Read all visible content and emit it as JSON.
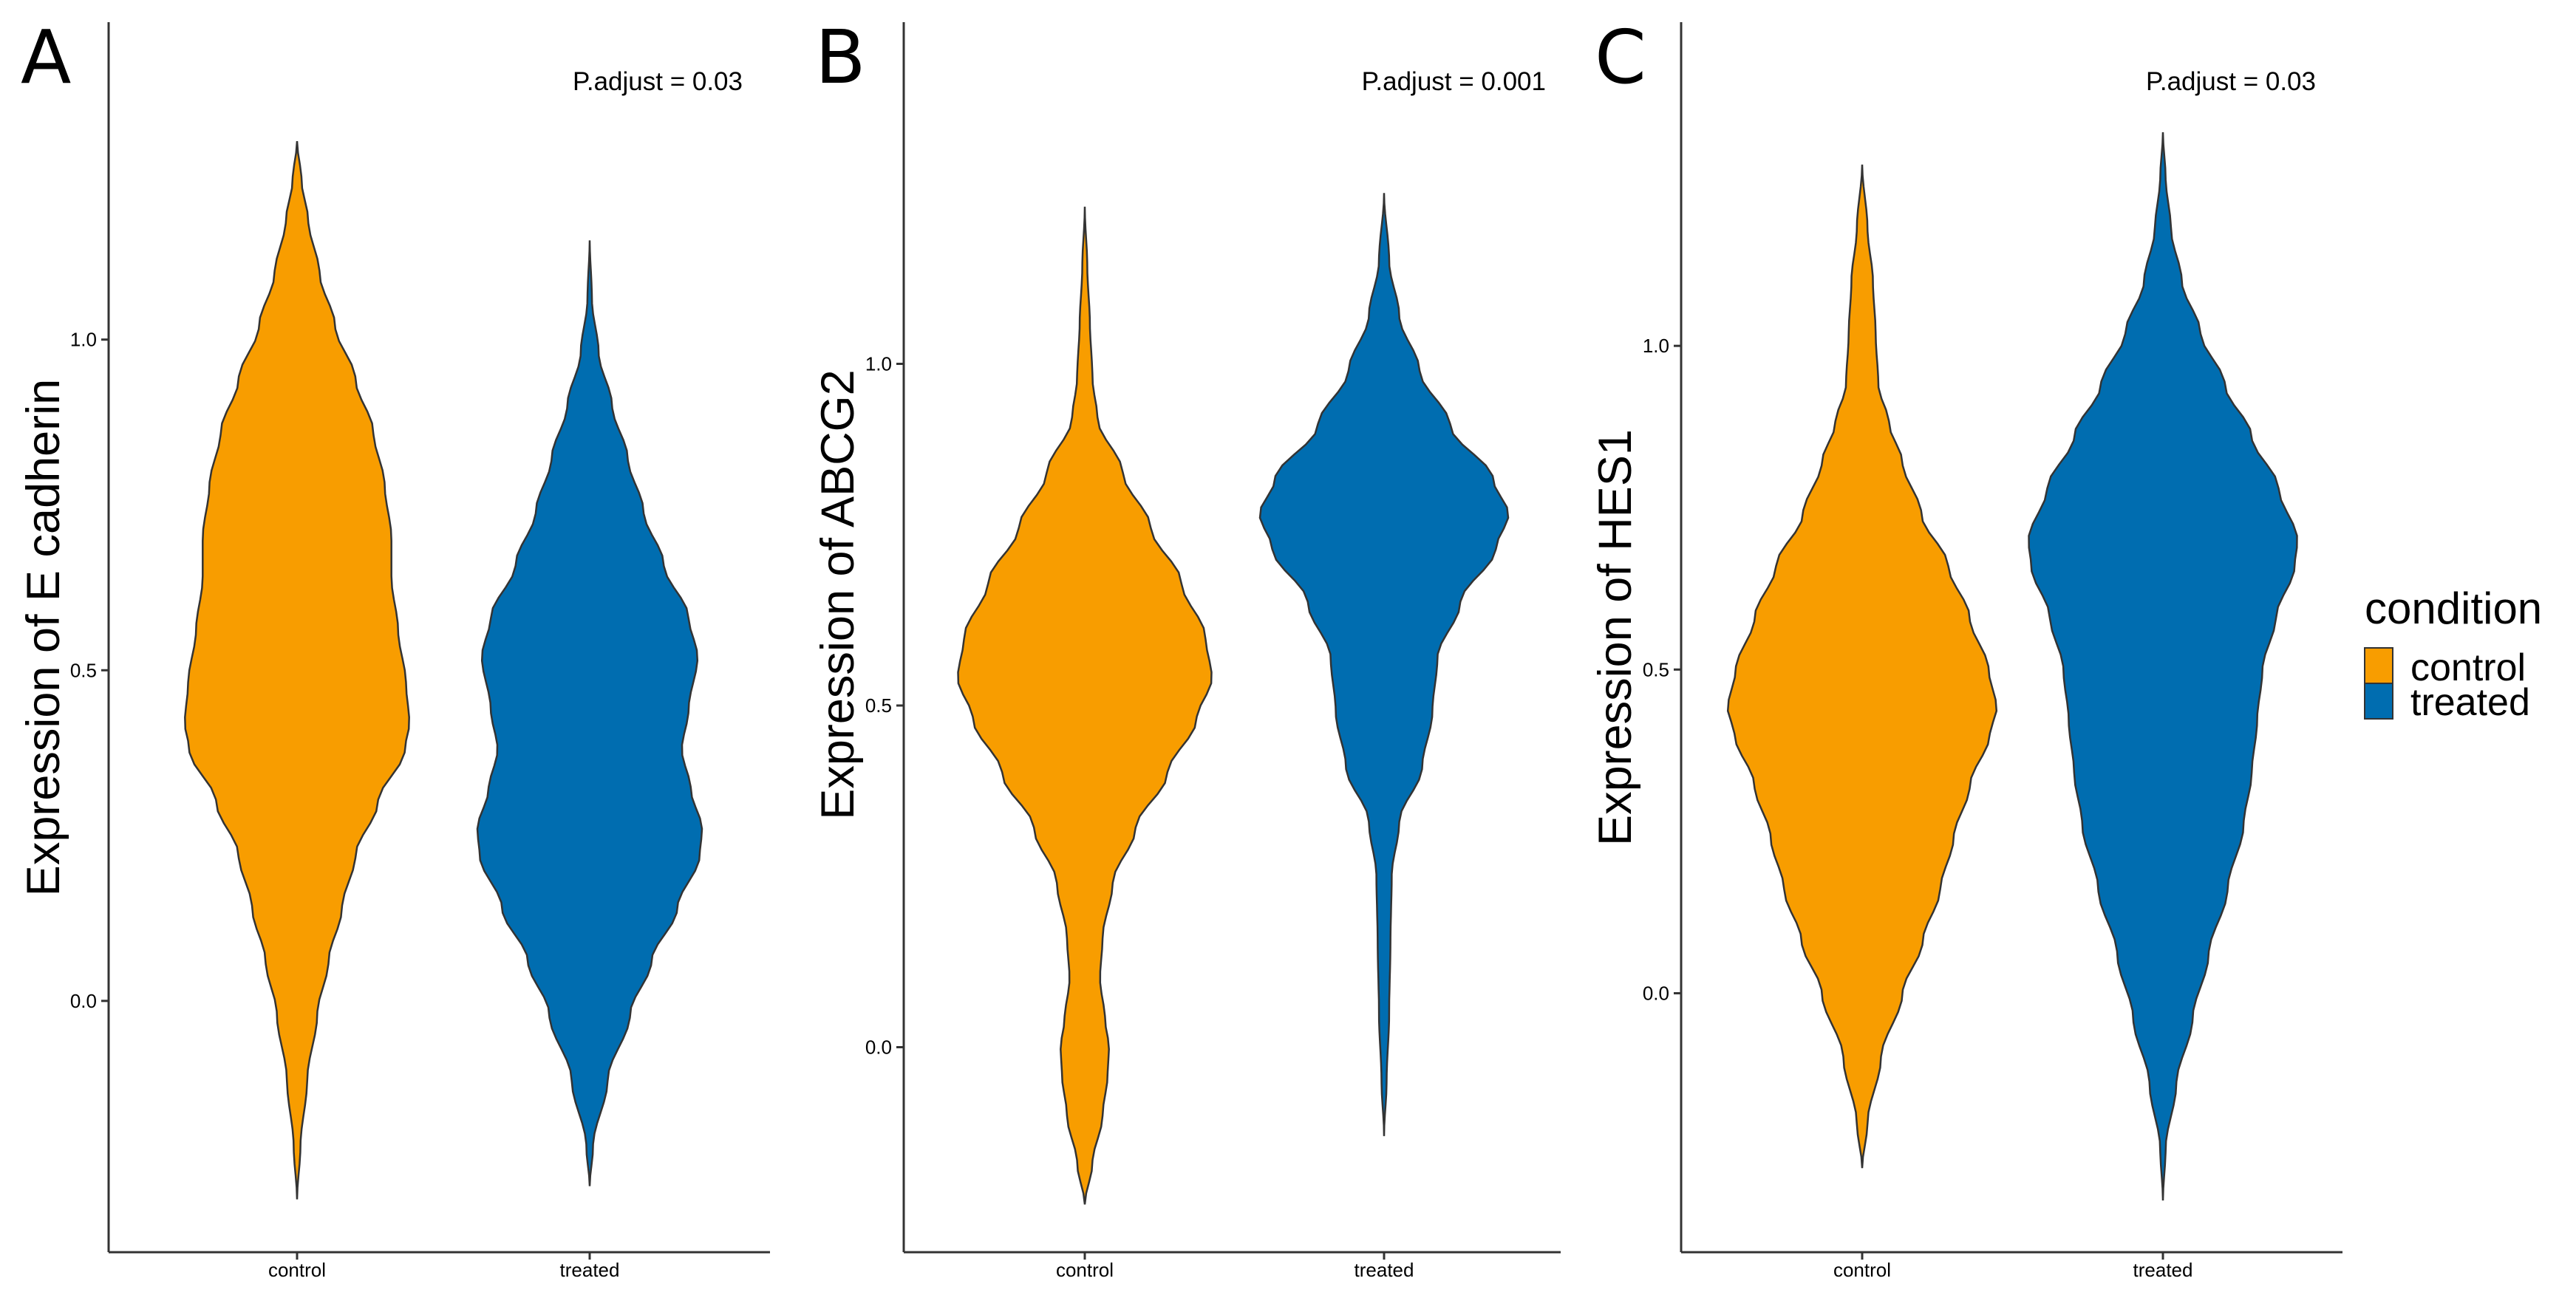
{
  "legend": {
    "title": "condition",
    "entries": [
      {
        "label": "control",
        "color": "#F89D00"
      },
      {
        "label": "treated",
        "color": "#006DB0"
      }
    ]
  },
  "chart_data": [
    {
      "type": "violin",
      "panel_label": "A",
      "title": "",
      "xlabel": "",
      "ylabel": "Expression of E cadherin",
      "annotation": "P.adjust = 0.03",
      "categories": [
        "control",
        "treated"
      ],
      "ylim": [
        -0.38,
        1.48
      ],
      "y_ticks": [
        0.0,
        0.5,
        1.0
      ],
      "y_tick_labels": [
        "0.0",
        "0.5",
        "1.0"
      ],
      "series": [
        {
          "name": "control",
          "color": "#F89D00",
          "range": [
            -0.3,
            1.3
          ],
          "profile": [
            [
              -0.3,
              0.0
            ],
            [
              -0.22,
              0.03
            ],
            [
              -0.12,
              0.09
            ],
            [
              -0.02,
              0.18
            ],
            [
              0.06,
              0.28
            ],
            [
              0.14,
              0.4
            ],
            [
              0.22,
              0.52
            ],
            [
              0.3,
              0.72
            ],
            [
              0.38,
              0.96
            ],
            [
              0.42,
              1.0
            ],
            [
              0.48,
              0.97
            ],
            [
              0.56,
              0.9
            ],
            [
              0.64,
              0.84
            ],
            [
              0.7,
              0.84
            ],
            [
              0.78,
              0.78
            ],
            [
              0.86,
              0.68
            ],
            [
              0.94,
              0.52
            ],
            [
              1.02,
              0.34
            ],
            [
              1.1,
              0.2
            ],
            [
              1.18,
              0.1
            ],
            [
              1.24,
              0.04
            ],
            [
              1.3,
              0.0
            ]
          ]
        },
        {
          "name": "treated",
          "color": "#006DB0",
          "range": [
            -0.28,
            1.15
          ],
          "profile": [
            [
              -0.28,
              0.0
            ],
            [
              -0.22,
              0.03
            ],
            [
              -0.12,
              0.16
            ],
            [
              -0.02,
              0.36
            ],
            [
              0.06,
              0.55
            ],
            [
              0.14,
              0.78
            ],
            [
              0.22,
              0.98
            ],
            [
              0.26,
              1.0
            ],
            [
              0.32,
              0.9
            ],
            [
              0.38,
              0.82
            ],
            [
              0.44,
              0.88
            ],
            [
              0.52,
              0.96
            ],
            [
              0.58,
              0.88
            ],
            [
              0.66,
              0.66
            ],
            [
              0.74,
              0.48
            ],
            [
              0.82,
              0.34
            ],
            [
              0.9,
              0.2
            ],
            [
              0.98,
              0.08
            ],
            [
              1.06,
              0.02
            ],
            [
              1.15,
              0.0
            ]
          ]
        }
      ]
    },
    {
      "type": "violin",
      "panel_label": "B",
      "title": "",
      "xlabel": "",
      "ylabel": "Expression of ABCG2",
      "annotation": "P.adjust = 0.001",
      "categories": [
        "control",
        "treated"
      ],
      "ylim": [
        -0.3,
        1.5
      ],
      "y_ticks": [
        0.0,
        0.5,
        1.0
      ],
      "y_tick_labels": [
        "0.0",
        "0.5",
        "1.0"
      ],
      "series": [
        {
          "name": "control",
          "color": "#F89D00",
          "range": [
            -0.23,
            1.23
          ],
          "profile": [
            [
              -0.23,
              0.0
            ],
            [
              -0.17,
              0.06
            ],
            [
              -0.1,
              0.14
            ],
            [
              -0.04,
              0.18
            ],
            [
              0.0,
              0.19
            ],
            [
              0.04,
              0.16
            ],
            [
              0.1,
              0.12
            ],
            [
              0.16,
              0.14
            ],
            [
              0.24,
              0.22
            ],
            [
              0.32,
              0.4
            ],
            [
              0.4,
              0.65
            ],
            [
              0.48,
              0.88
            ],
            [
              0.54,
              1.0
            ],
            [
              0.6,
              0.95
            ],
            [
              0.68,
              0.76
            ],
            [
              0.76,
              0.52
            ],
            [
              0.84,
              0.3
            ],
            [
              0.92,
              0.1
            ],
            [
              0.98,
              0.06
            ],
            [
              1.06,
              0.04
            ],
            [
              1.14,
              0.02
            ],
            [
              1.23,
              0.0
            ]
          ]
        },
        {
          "name": "treated",
          "color": "#006DB0",
          "range": [
            -0.13,
            1.25
          ],
          "profile": [
            [
              -0.13,
              0.0
            ],
            [
              -0.05,
              0.02
            ],
            [
              0.05,
              0.04
            ],
            [
              0.15,
              0.05
            ],
            [
              0.25,
              0.06
            ],
            [
              0.33,
              0.12
            ],
            [
              0.41,
              0.3
            ],
            [
              0.49,
              0.38
            ],
            [
              0.57,
              0.42
            ],
            [
              0.65,
              0.6
            ],
            [
              0.73,
              0.88
            ],
            [
              0.78,
              0.98
            ],
            [
              0.83,
              0.86
            ],
            [
              0.91,
              0.52
            ],
            [
              0.99,
              0.28
            ],
            [
              1.07,
              0.12
            ],
            [
              1.15,
              0.04
            ],
            [
              1.25,
              0.0
            ]
          ]
        }
      ]
    },
    {
      "type": "violin",
      "panel_label": "C",
      "title": "",
      "xlabel": "",
      "ylabel": "Expression of HES1",
      "annotation": "P.adjust = 0.03",
      "categories": [
        "control",
        "treated"
      ],
      "ylim": [
        -0.4,
        1.5
      ],
      "y_ticks": [
        0.0,
        0.5,
        1.0
      ],
      "y_tick_labels": [
        "0.0",
        "0.5",
        "1.0"
      ],
      "series": [
        {
          "name": "control",
          "color": "#F89D00",
          "range": [
            -0.27,
            1.28
          ],
          "profile": [
            [
              -0.27,
              0.0
            ],
            [
              -0.2,
              0.04
            ],
            [
              -0.1,
              0.14
            ],
            [
              0.0,
              0.3
            ],
            [
              0.08,
              0.45
            ],
            [
              0.16,
              0.58
            ],
            [
              0.24,
              0.68
            ],
            [
              0.32,
              0.8
            ],
            [
              0.4,
              0.95
            ],
            [
              0.44,
              1.0
            ],
            [
              0.5,
              0.94
            ],
            [
              0.58,
              0.8
            ],
            [
              0.66,
              0.64
            ],
            [
              0.74,
              0.44
            ],
            [
              0.82,
              0.3
            ],
            [
              0.88,
              0.2
            ],
            [
              0.94,
              0.12
            ],
            [
              1.02,
              0.1
            ],
            [
              1.1,
              0.08
            ],
            [
              1.18,
              0.04
            ],
            [
              1.28,
              0.0
            ]
          ]
        },
        {
          "name": "treated",
          "color": "#006DB0",
          "range": [
            -0.32,
            1.33
          ],
          "profile": [
            [
              -0.32,
              0.0
            ],
            [
              -0.24,
              0.02
            ],
            [
              -0.14,
              0.1
            ],
            [
              -0.04,
              0.22
            ],
            [
              0.06,
              0.34
            ],
            [
              0.16,
              0.48
            ],
            [
              0.26,
              0.6
            ],
            [
              0.34,
              0.66
            ],
            [
              0.42,
              0.7
            ],
            [
              0.5,
              0.74
            ],
            [
              0.58,
              0.84
            ],
            [
              0.66,
              0.98
            ],
            [
              0.7,
              1.0
            ],
            [
              0.78,
              0.86
            ],
            [
              0.86,
              0.66
            ],
            [
              0.94,
              0.46
            ],
            [
              1.02,
              0.28
            ],
            [
              1.1,
              0.14
            ],
            [
              1.18,
              0.06
            ],
            [
              1.26,
              0.02
            ],
            [
              1.33,
              0.0
            ]
          ]
        }
      ]
    }
  ]
}
